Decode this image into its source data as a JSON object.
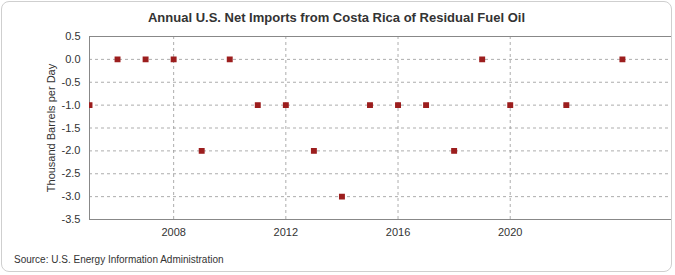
{
  "chart_data": {
    "type": "scatter",
    "title": "Annual U.S. Net Imports from Costa Rica of Residual Fuel Oil",
    "y_label": "Thousand Barrels per Day",
    "caption": "Source: U.S. Energy Information Administration",
    "x": [
      2005,
      2006,
      2007,
      2008,
      2009,
      2010,
      2011,
      2012,
      2013,
      2014,
      2015,
      2016,
      2017,
      2018,
      2019,
      2020,
      2022,
      2024
    ],
    "values": [
      -1,
      0,
      0,
      0,
      -2,
      0,
      -1,
      -1,
      -2,
      -3,
      -1,
      -1,
      -1,
      -2,
      0,
      -1,
      -1,
      0
    ],
    "color": "#9c1e1e",
    "marker": "square",
    "xlim": [
      2005,
      2025.75
    ],
    "xticks": [
      2008,
      2012,
      2016,
      2020
    ],
    "ylim": [
      -3.5,
      0.5
    ],
    "yticks": [
      {
        "value": -3.5,
        "label": "-3.5"
      },
      {
        "value": -3,
        "label": "-3.0"
      },
      {
        "value": -2.5,
        "label": "-2.5"
      },
      {
        "value": -2,
        "label": "-2.0"
      },
      {
        "value": -1.5,
        "label": "-1.5"
      },
      {
        "value": -1,
        "label": "-1.0"
      },
      {
        "value": -0.5,
        "label": "-0.5"
      },
      {
        "value": 0,
        "label": "0.0"
      },
      0.5
    ],
    "grid": true
  }
}
